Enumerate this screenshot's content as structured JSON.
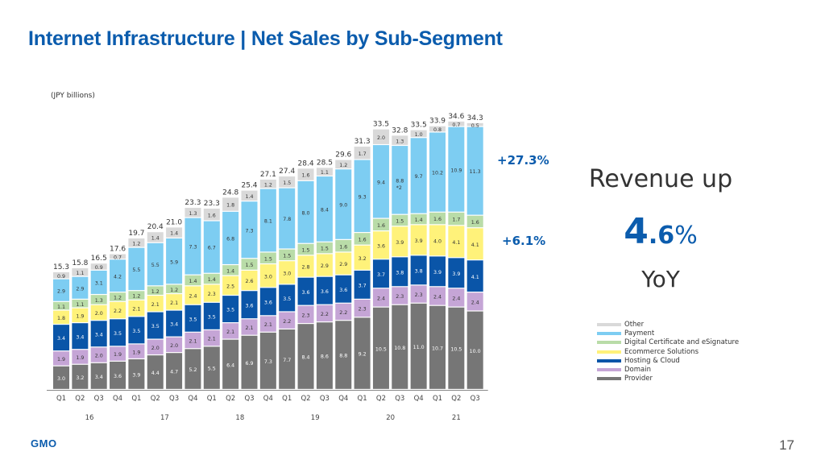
{
  "header": {
    "title": "Internet Infrastructure | Net Sales by Sub-Segment"
  },
  "chart_data": {
    "type": "bar",
    "stacked": true,
    "title": "Internet Infrastructure | Net Sales by Sub-Segment",
    "unit_label": "(JPY billions)",
    "xlabel": "",
    "ylabel": "",
    "ylim": [
      0,
      36
    ],
    "grid": false,
    "legend_position": "right",
    "categories": [
      "Q1",
      "Q2",
      "Q3",
      "Q4",
      "Q1",
      "Q2",
      "Q3",
      "Q4",
      "Q1",
      "Q2",
      "Q3",
      "Q4",
      "Q1",
      "Q2",
      "Q3",
      "Q4",
      "Q1",
      "Q2",
      "Q3",
      "Q4",
      "Q1",
      "Q2",
      "Q3"
    ],
    "year_groups": [
      {
        "label": "16",
        "start": 0,
        "end": 3
      },
      {
        "label": "17",
        "start": 4,
        "end": 7
      },
      {
        "label": "18",
        "start": 8,
        "end": 11
      },
      {
        "label": "19",
        "start": 12,
        "end": 15
      },
      {
        "label": "20",
        "start": 16,
        "end": 19
      },
      {
        "label": "21",
        "start": 20,
        "end": 22
      }
    ],
    "totals": [
      15.3,
      15.8,
      16.5,
      17.6,
      19.7,
      20.4,
      21.0,
      23.3,
      23.3,
      24.8,
      25.4,
      27.1,
      27.4,
      28.4,
      28.5,
      29.6,
      31.3,
      33.5,
      32.8,
      33.5,
      33.9,
      34.6,
      34.3
    ],
    "series": [
      {
        "name": "Provider",
        "color": "#767676",
        "label_color": "#ffffff",
        "values": [
          3.0,
          3.2,
          3.4,
          3.6,
          3.9,
          4.4,
          4.7,
          5.2,
          5.5,
          6.4,
          6.9,
          7.3,
          7.7,
          8.4,
          8.6,
          8.8,
          9.2,
          10.5,
          10.8,
          11.0,
          10.7,
          10.5,
          10.0
        ]
      },
      {
        "name": "Domain",
        "color": "#c5a5d6",
        "label_color": "#333333",
        "values": [
          1.9,
          1.9,
          2.0,
          1.9,
          1.9,
          2.0,
          2.0,
          2.1,
          2.1,
          2.1,
          2.1,
          2.1,
          2.2,
          2.3,
          2.2,
          2.2,
          2.3,
          2.4,
          2.3,
          2.3,
          2.4,
          2.4,
          2.4
        ]
      },
      {
        "name": "Hosting & Cloud",
        "color": "#0a55a8",
        "label_color": "#ffffff",
        "values": [
          3.4,
          3.4,
          3.4,
          3.5,
          3.5,
          3.5,
          3.4,
          3.5,
          3.5,
          3.5,
          3.6,
          3.6,
          3.5,
          3.6,
          3.6,
          3.6,
          3.7,
          3.7,
          3.8,
          3.8,
          3.9,
          3.9,
          4.1
        ]
      },
      {
        "name": "Ecommerce Solutions",
        "color": "#fff27a",
        "label_color": "#333333",
        "values": [
          1.8,
          1.9,
          2.0,
          2.2,
          2.1,
          2.1,
          2.1,
          2.4,
          2.3,
          2.5,
          2.6,
          3.0,
          3.0,
          2.8,
          2.9,
          2.9,
          3.2,
          3.6,
          3.9,
          3.9,
          4.0,
          4.1,
          4.1
        ]
      },
      {
        "name": "Digital Certificate and eSignature",
        "color": "#b9dca8",
        "label_color": "#333333",
        "values": [
          1.1,
          1.1,
          1.3,
          1.2,
          1.2,
          1.2,
          1.2,
          1.4,
          1.4,
          1.4,
          1.5,
          1.5,
          1.5,
          1.5,
          1.5,
          1.6,
          1.6,
          1.6,
          1.5,
          1.4,
          1.6,
          1.7,
          1.6
        ]
      },
      {
        "name": "Payment",
        "color": "#7dcdf2",
        "label_color": "#333333",
        "values": [
          2.9,
          2.9,
          3.1,
          4.2,
          5.5,
          5.5,
          5.9,
          7.3,
          6.7,
          6.8,
          7.3,
          8.1,
          7.8,
          8.0,
          8.4,
          9.0,
          9.3,
          9.4,
          8.8,
          9.7,
          10.2,
          10.9,
          11.3
        ]
      },
      {
        "name": "Other",
        "color": "#d9d9d9",
        "label_color": "#333333",
        "values": [
          0.9,
          1.1,
          0.9,
          0.7,
          1.2,
          1.4,
          1.4,
          1.3,
          1.6,
          1.8,
          1.4,
          1.2,
          1.5,
          1.6,
          1.1,
          1.2,
          1.7,
          2.0,
          1.3,
          1.0,
          0.8,
          0.7,
          0.5
        ]
      }
    ],
    "annotations": [
      {
        "text": "*2",
        "bar_index": 18,
        "series": "Payment"
      }
    ],
    "legend_order": [
      "Other",
      "Payment",
      "Digital Certificate and eSignature",
      "Ecommerce Solutions",
      "Hosting & Cloud",
      "Domain",
      "Provider"
    ]
  },
  "growth_labels": {
    "payment": "+27.3%",
    "ecommerce": "+6.1%"
  },
  "summary": {
    "line1": "Revenue up",
    "value_int": "4",
    "value_dec": ".6",
    "value_pct": "%",
    "line3": "YoY"
  },
  "footer": {
    "logo": "GMO",
    "page_number": "17"
  },
  "colors": {
    "accent": "#0b5cad"
  }
}
